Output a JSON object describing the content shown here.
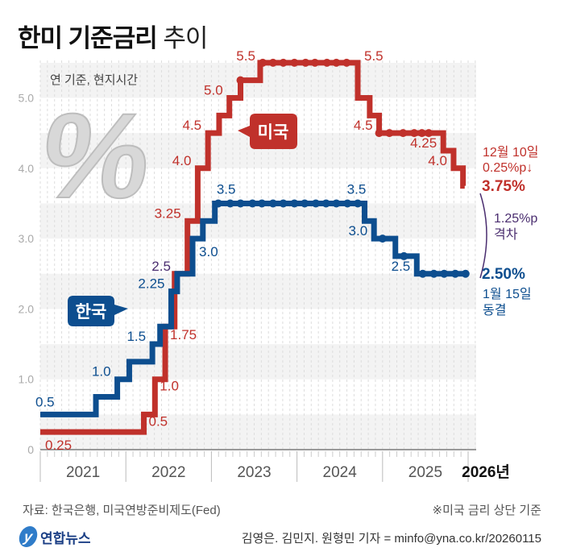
{
  "title": {
    "bold": "한미 기준금리",
    "light": "추이"
  },
  "note_basis": "연 기준, 현지시간",
  "bubble_us": "미국",
  "bubble_kr": "한국",
  "colors": {
    "us": "#c0312b",
    "kr": "#0d4e8f",
    "gap": "#4a2d6f",
    "band": "#f3f3f3",
    "axis": "#aaaaaa"
  },
  "chart_data": {
    "type": "line",
    "title": "한미 기준금리 추이",
    "subtitle": "연 기준, 현지시간",
    "xlabel": "",
    "ylabel": "",
    "ylim": [
      0,
      5.5
    ],
    "xlim": [
      2021,
      2026.05
    ],
    "y_ticks": [
      "0",
      "1.0",
      "2.0",
      "3.0",
      "4.0",
      "5.0"
    ],
    "x_ticks": [
      "2021",
      "2022",
      "2023",
      "2024",
      "2025",
      "2026년"
    ],
    "step": true,
    "series": [
      {
        "name": "미국",
        "key": "us",
        "points": [
          [
            2021.0,
            0.25
          ],
          [
            2022.21,
            0.5
          ],
          [
            2022.34,
            1.0
          ],
          [
            2022.46,
            1.75
          ],
          [
            2022.57,
            2.5
          ],
          [
            2022.72,
            3.25
          ],
          [
            2022.84,
            4.0
          ],
          [
            2022.96,
            4.5
          ],
          [
            2023.09,
            4.75
          ],
          [
            2023.21,
            5.0
          ],
          [
            2023.34,
            5.25
          ],
          [
            2023.57,
            5.5
          ],
          [
            2024.71,
            5.0
          ],
          [
            2024.85,
            4.75
          ],
          [
            2024.96,
            4.5
          ],
          [
            2025.71,
            4.25
          ],
          [
            2025.83,
            4.0
          ],
          [
            2025.94,
            3.75
          ],
          [
            2026.0,
            3.75
          ]
        ],
        "labels": [
          {
            "x": 2021.0,
            "y": 0.25,
            "text": "0.25"
          },
          {
            "x": 2022.21,
            "y": 0.5,
            "text": "0.5"
          },
          {
            "x": 2022.34,
            "y": 1.0,
            "text": "1.0"
          },
          {
            "x": 2022.46,
            "y": 1.75,
            "text": "1.75"
          },
          {
            "x": 2022.72,
            "y": 3.25,
            "text": "3.25"
          },
          {
            "x": 2022.84,
            "y": 4.0,
            "text": "4.0"
          },
          {
            "x": 2022.96,
            "y": 4.5,
            "text": "4.5"
          },
          {
            "x": 2023.21,
            "y": 5.0,
            "text": "5.0"
          },
          {
            "x": 2023.57,
            "y": 5.5,
            "text": "5.5"
          },
          {
            "x": 2024.71,
            "y": 5.5,
            "text": "5.5"
          },
          {
            "x": 2024.96,
            "y": 4.5,
            "text": "4.5"
          },
          {
            "x": 2025.71,
            "y": 4.25,
            "text": "4.25"
          },
          {
            "x": 2025.83,
            "y": 4.0,
            "text": "4.0"
          }
        ],
        "hold_dots": [
          2023.34,
          2023.6,
          2023.72,
          2023.84,
          2023.97,
          2024.1,
          2024.21,
          2024.35,
          2024.46,
          2024.58,
          2024.96,
          2025.08,
          2025.24,
          2025.37,
          2025.46,
          2025.54
        ]
      },
      {
        "name": "한국",
        "key": "kr",
        "points": [
          [
            2021.0,
            0.5
          ],
          [
            2021.65,
            0.75
          ],
          [
            2021.9,
            1.0
          ],
          [
            2022.04,
            1.25
          ],
          [
            2022.31,
            1.5
          ],
          [
            2022.4,
            1.75
          ],
          [
            2022.53,
            2.25
          ],
          [
            2022.6,
            2.5
          ],
          [
            2022.78,
            3.0
          ],
          [
            2022.9,
            3.25
          ],
          [
            2023.04,
            3.5
          ],
          [
            2024.79,
            3.25
          ],
          [
            2024.9,
            3.0
          ],
          [
            2025.15,
            2.75
          ],
          [
            2025.4,
            2.5
          ],
          [
            2026.0,
            2.5
          ]
        ],
        "labels": [
          {
            "x": 2021.0,
            "y": 0.5,
            "text": "0.5"
          },
          {
            "x": 2021.9,
            "y": 1.0,
            "text": "1.0"
          },
          {
            "x": 2022.31,
            "y": 1.5,
            "text": "1.5"
          },
          {
            "x": 2022.53,
            "y": 2.25,
            "text": "2.25"
          },
          {
            "x": 2022.6,
            "y": 2.5,
            "text": "2.5"
          },
          {
            "x": 2022.78,
            "y": 3.0,
            "text": "3.0"
          },
          {
            "x": 2023.04,
            "y": 3.5,
            "text": "3.5"
          },
          {
            "x": 2024.79,
            "y": 3.5,
            "text": "3.5"
          },
          {
            "x": 2024.9,
            "y": 3.0,
            "text": "3.0"
          },
          {
            "x": 2025.4,
            "y": 2.5,
            "text": "2.5"
          }
        ],
        "hold_dots": [
          2023.08,
          2023.22,
          2023.34,
          2023.48,
          2023.59,
          2023.72,
          2023.84,
          2023.97,
          2024.09,
          2024.22,
          2024.34,
          2024.46,
          2024.59,
          2024.71,
          2025.0,
          2025.25,
          2025.47,
          2025.6,
          2025.72,
          2025.85,
          2025.97
        ]
      }
    ],
    "annotations": {
      "us_last_date": "12월 10일",
      "us_last_change": "0.25%p↓",
      "us_last_value": "3.75%",
      "gap_value": "1.25%p",
      "gap_label": "격차",
      "kr_last_value": "2.50%",
      "kr_last_date": "1월 15일",
      "kr_last_status": "동결"
    }
  },
  "footer": {
    "source": "자료: 한국은행, 미국연방준비제도(Fed)",
    "note": "※미국 금리 상단 기준",
    "credit": "김영은. 김민지. 원형민 기자 = minfo@yna.co.kr/20260115",
    "logo_text": "연합뉴스",
    "logo_mark": "y"
  }
}
